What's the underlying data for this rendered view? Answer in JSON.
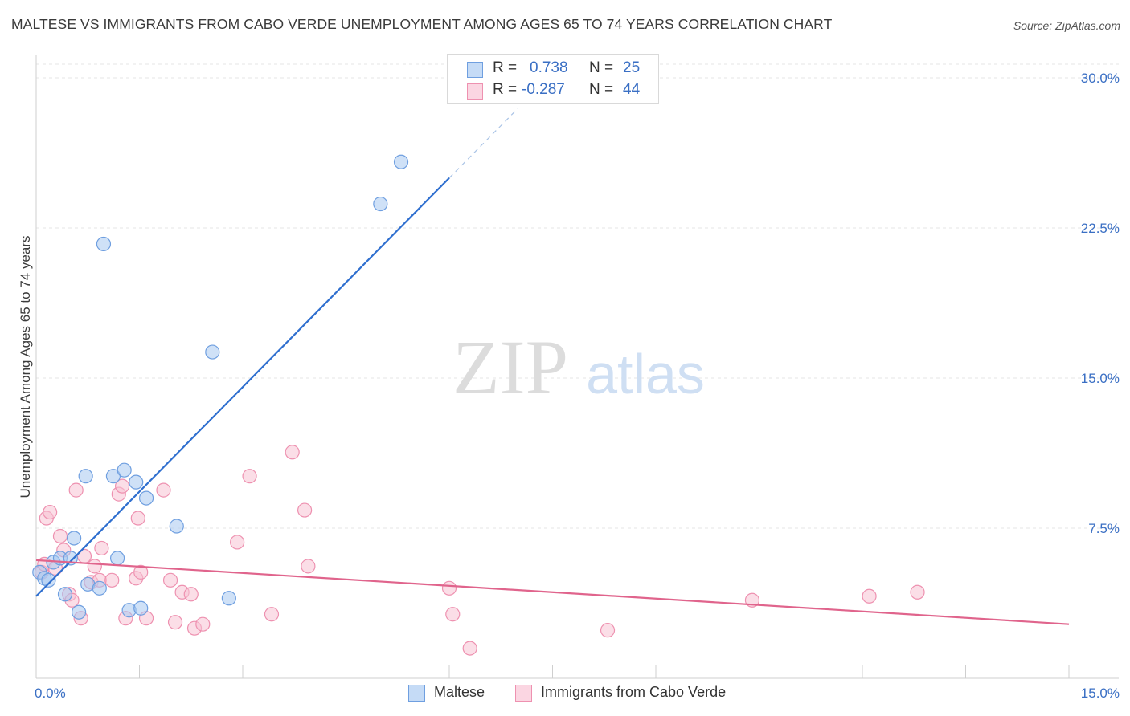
{
  "title": "MALTESE VS IMMIGRANTS FROM CABO VERDE UNEMPLOYMENT AMONG AGES 65 TO 74 YEARS CORRELATION CHART",
  "source": "Source: ZipAtlas.com",
  "watermark": {
    "zip": "ZIP",
    "atlas": "atlas"
  },
  "stats": [
    {
      "r_label": "R =",
      "r_value": "0.738",
      "n_label": "N =",
      "n_value": "25",
      "color": "#a8c8f0",
      "stroke": "#6f9fe0"
    },
    {
      "r_label": "R =",
      "r_value": "-0.287",
      "n_label": "N =",
      "n_value": "44",
      "color": "#f7c3d4",
      "stroke": "#ee91b0"
    }
  ],
  "legend": [
    {
      "label": "Maltese",
      "color": "#c5dbf6",
      "stroke": "#6f9fe0"
    },
    {
      "label": "Immigrants from Cabo Verde",
      "color": "#fbd6e2",
      "stroke": "#ee91b0"
    }
  ],
  "chart_data": {
    "type": "scatter",
    "ylabel": "Unemployment Among Ages 65 to 74 years",
    "xlabel": "",
    "xlim": [
      0,
      15
    ],
    "ylim": [
      0,
      30
    ],
    "x_tick_labels": [
      "0.0%",
      "15.0%"
    ],
    "y_ticks": [
      7.5,
      15.0,
      22.5,
      30.0
    ],
    "y_tick_labels": [
      "7.5%",
      "15.0%",
      "22.5%",
      "30.0%"
    ],
    "grid": true,
    "series": [
      {
        "name": "Maltese",
        "color": "#a8c8f0",
        "stroke": "#6f9fe0",
        "line_color": "#2f6fcf",
        "trend": {
          "x0": 0.0,
          "y0": 4.1,
          "x1": 6.0,
          "y1": 25.0,
          "dash_to_x": 7.0
        },
        "points": [
          [
            0.05,
            5.3
          ],
          [
            0.12,
            5.0
          ],
          [
            0.18,
            4.9
          ],
          [
            0.25,
            5.8
          ],
          [
            0.35,
            6.0
          ],
          [
            0.42,
            4.2
          ],
          [
            0.5,
            6.0
          ],
          [
            0.55,
            7.0
          ],
          [
            0.62,
            3.3
          ],
          [
            0.72,
            10.1
          ],
          [
            0.75,
            4.7
          ],
          [
            0.92,
            4.5
          ],
          [
            0.98,
            21.7
          ],
          [
            1.12,
            10.1
          ],
          [
            1.18,
            6.0
          ],
          [
            1.28,
            10.4
          ],
          [
            1.35,
            3.4
          ],
          [
            1.45,
            9.8
          ],
          [
            1.52,
            3.5
          ],
          [
            1.6,
            9.0
          ],
          [
            2.04,
            7.6
          ],
          [
            2.56,
            16.3
          ],
          [
            2.8,
            4.0
          ],
          [
            5.0,
            23.7
          ],
          [
            5.3,
            25.8
          ]
        ]
      },
      {
        "name": "Immigrants from Cabo Verde",
        "color": "#f7c3d4",
        "stroke": "#ee91b0",
        "line_color": "#e0648c",
        "trend": {
          "x0": 0.0,
          "y0": 5.9,
          "x1": 15.0,
          "y1": 2.7
        },
        "points": [
          [
            0.08,
            5.3
          ],
          [
            0.12,
            5.7
          ],
          [
            0.15,
            8.0
          ],
          [
            0.2,
            8.3
          ],
          [
            0.28,
            5.5
          ],
          [
            0.35,
            7.1
          ],
          [
            0.4,
            6.4
          ],
          [
            0.48,
            4.2
          ],
          [
            0.52,
            3.9
          ],
          [
            0.58,
            9.4
          ],
          [
            0.65,
            3.0
          ],
          [
            0.7,
            6.1
          ],
          [
            0.8,
            4.8
          ],
          [
            0.85,
            5.6
          ],
          [
            0.92,
            4.9
          ],
          [
            0.95,
            6.5
          ],
          [
            1.1,
            4.9
          ],
          [
            1.2,
            9.2
          ],
          [
            1.25,
            9.6
          ],
          [
            1.3,
            3.0
          ],
          [
            1.45,
            5.0
          ],
          [
            1.48,
            8.0
          ],
          [
            1.52,
            5.3
          ],
          [
            1.6,
            3.0
          ],
          [
            1.85,
            9.4
          ],
          [
            1.95,
            4.9
          ],
          [
            2.02,
            2.8
          ],
          [
            2.12,
            4.3
          ],
          [
            2.25,
            4.2
          ],
          [
            2.3,
            2.5
          ],
          [
            2.42,
            2.7
          ],
          [
            2.92,
            6.8
          ],
          [
            3.1,
            10.1
          ],
          [
            3.42,
            3.2
          ],
          [
            3.72,
            11.3
          ],
          [
            3.9,
            8.4
          ],
          [
            3.95,
            5.6
          ],
          [
            6.0,
            4.5
          ],
          [
            6.05,
            3.2
          ],
          [
            6.3,
            1.5
          ],
          [
            8.3,
            2.4
          ],
          [
            10.4,
            3.9
          ],
          [
            12.1,
            4.1
          ],
          [
            12.8,
            4.3
          ]
        ]
      }
    ]
  }
}
